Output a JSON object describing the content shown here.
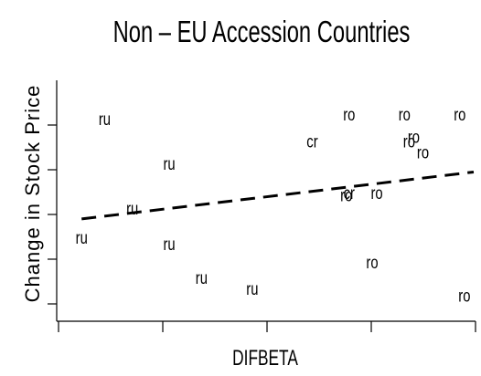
{
  "chart_data": {
    "type": "scatter",
    "title": "Non – EU Accession Countries",
    "xlabel": "DIFBETA",
    "ylabel": "Change in Stock Price",
    "xlim": [
      -0.02,
      4.52
    ],
    "ylim": [
      -0.15,
      4.05
    ],
    "points": [
      {
        "label": "ru",
        "x": 0.5,
        "y": 4.0
      },
      {
        "label": "ru",
        "x": 1.2,
        "y": 3.0
      },
      {
        "label": "ru",
        "x": 0.8,
        "y": 2.0
      },
      {
        "label": "ru",
        "x": 0.25,
        "y": 1.35
      },
      {
        "label": "ru",
        "x": 1.2,
        "y": 1.2
      },
      {
        "label": "ru",
        "x": 1.55,
        "y": 0.45
      },
      {
        "label": "ru",
        "x": 2.1,
        "y": 0.2
      },
      {
        "label": "cr",
        "x": 2.75,
        "y": 3.5
      },
      {
        "label": "cr",
        "x": 3.15,
        "y": 2.35
      },
      {
        "label": "ro",
        "x": 3.15,
        "y": 4.1
      },
      {
        "label": "ro",
        "x": 3.75,
        "y": 4.1
      },
      {
        "label": "ro",
        "x": 4.35,
        "y": 4.1
      },
      {
        "label": "ro",
        "x": 3.85,
        "y": 3.6
      },
      {
        "label": "ro",
        "x": 3.8,
        "y": 3.5
      },
      {
        "label": "ro",
        "x": 3.95,
        "y": 3.25
      },
      {
        "label": "ro",
        "x": 3.12,
        "y": 2.3
      },
      {
        "label": "ro",
        "x": 3.45,
        "y": 2.35
      },
      {
        "label": "ro",
        "x": 3.4,
        "y": 0.8
      },
      {
        "label": "ro",
        "x": 4.4,
        "y": 0.05
      }
    ],
    "fit_line": {
      "x": [
        0.25,
        4.5
      ],
      "y": [
        1.9,
        2.95
      ]
    }
  }
}
